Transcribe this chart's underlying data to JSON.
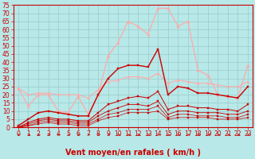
{
  "background_color": "#b8e8e8",
  "grid_color": "#99cccc",
  "xlabel": "Vent moyen/en rafales ( km/h )",
  "xlim": [
    -0.5,
    23.5
  ],
  "ylim": [
    0,
    75
  ],
  "yticks": [
    0,
    5,
    10,
    15,
    20,
    25,
    30,
    35,
    40,
    45,
    50,
    55,
    60,
    65,
    70,
    75
  ],
  "xticks": [
    0,
    1,
    2,
    3,
    4,
    5,
    6,
    7,
    8,
    9,
    10,
    11,
    12,
    13,
    14,
    15,
    16,
    17,
    18,
    19,
    20,
    21,
    22,
    23
  ],
  "series": [
    {
      "x": [
        0,
        1,
        2,
        3,
        4,
        5,
        6,
        7,
        8,
        9,
        10,
        11,
        12,
        13,
        14,
        15,
        16,
        17,
        18,
        19,
        20,
        21,
        22,
        23
      ],
      "y": [
        24,
        13,
        20,
        20,
        10,
        9,
        19,
        8,
        20,
        44,
        52,
        65,
        62,
        57,
        73,
        73,
        62,
        65,
        35,
        32,
        20,
        19,
        18,
        38
      ],
      "color": "#ffaaaa",
      "marker": "^",
      "markersize": 2.5,
      "linewidth": 0.9
    },
    {
      "x": [
        0,
        1,
        2,
        3,
        4,
        5,
        6,
        7,
        8,
        9,
        10,
        11,
        12,
        13,
        14,
        15,
        16,
        17,
        18,
        19,
        20,
        21,
        22,
        23
      ],
      "y": [
        24,
        20,
        21,
        21,
        20,
        20,
        20,
        18,
        23,
        28,
        29,
        31,
        31,
        30,
        33,
        27,
        29,
        28,
        27,
        27,
        26,
        25,
        25,
        28
      ],
      "color": "#ffaaaa",
      "marker": "^",
      "markersize": 2,
      "linewidth": 0.8
    },
    {
      "x": [
        0,
        1,
        2,
        3,
        4,
        5,
        6,
        7,
        8,
        9,
        10,
        11,
        12,
        13,
        14,
        15,
        16,
        17,
        18,
        19,
        20,
        21,
        22,
        23
      ],
      "y": [
        1,
        5,
        9,
        10,
        9,
        8,
        7,
        7,
        20,
        30,
        36,
        38,
        38,
        37,
        48,
        20,
        25,
        24,
        21,
        21,
        20,
        19,
        18,
        25
      ],
      "color": "#cc0000",
      "marker": "s",
      "markersize": 2,
      "linewidth": 1.0
    },
    {
      "x": [
        0,
        1,
        2,
        3,
        4,
        5,
        6,
        7,
        8,
        9,
        10,
        11,
        12,
        13,
        14,
        15,
        16,
        17,
        18,
        19,
        20,
        21,
        22,
        23
      ],
      "y": [
        0,
        3,
        5,
        6,
        5,
        5,
        4,
        4,
        9,
        14,
        16,
        18,
        19,
        18,
        22,
        11,
        13,
        13,
        12,
        12,
        11,
        11,
        10,
        14
      ],
      "color": "#cc0000",
      "marker": "s",
      "markersize": 1.5,
      "linewidth": 0.7
    },
    {
      "x": [
        0,
        1,
        2,
        3,
        4,
        5,
        6,
        7,
        8,
        9,
        10,
        11,
        12,
        13,
        14,
        15,
        16,
        17,
        18,
        19,
        20,
        21,
        22,
        23
      ],
      "y": [
        0,
        2,
        4,
        5,
        4,
        4,
        3,
        3,
        7,
        10,
        12,
        14,
        14,
        13,
        16,
        8,
        10,
        10,
        9,
        9,
        9,
        8,
        8,
        10
      ],
      "color": "#cc0000",
      "marker": "s",
      "markersize": 1.5,
      "linewidth": 0.6
    },
    {
      "x": [
        0,
        1,
        2,
        3,
        4,
        5,
        6,
        7,
        8,
        9,
        10,
        11,
        12,
        13,
        14,
        15,
        16,
        17,
        18,
        19,
        20,
        21,
        22,
        23
      ],
      "y": [
        0,
        1,
        3,
        4,
        3,
        3,
        2,
        2,
        5,
        8,
        9,
        11,
        11,
        11,
        13,
        6,
        8,
        8,
        7,
        7,
        7,
        6,
        6,
        8
      ],
      "color": "#cc0000",
      "marker": "s",
      "markersize": 1.5,
      "linewidth": 0.5
    },
    {
      "x": [
        0,
        1,
        2,
        3,
        4,
        5,
        6,
        7,
        8,
        9,
        10,
        11,
        12,
        13,
        14,
        15,
        16,
        17,
        18,
        19,
        20,
        21,
        22,
        23
      ],
      "y": [
        0,
        1,
        2,
        3,
        2,
        2,
        1,
        1,
        4,
        6,
        7,
        9,
        9,
        9,
        10,
        5,
        6,
        6,
        6,
        6,
        5,
        5,
        5,
        6
      ],
      "color": "#cc0000",
      "marker": "s",
      "markersize": 1.5,
      "linewidth": 0.5
    }
  ],
  "xlabel_color": "#cc0000",
  "xlabel_fontsize": 7,
  "tick_color": "#cc0000",
  "tick_fontsize": 5.5
}
